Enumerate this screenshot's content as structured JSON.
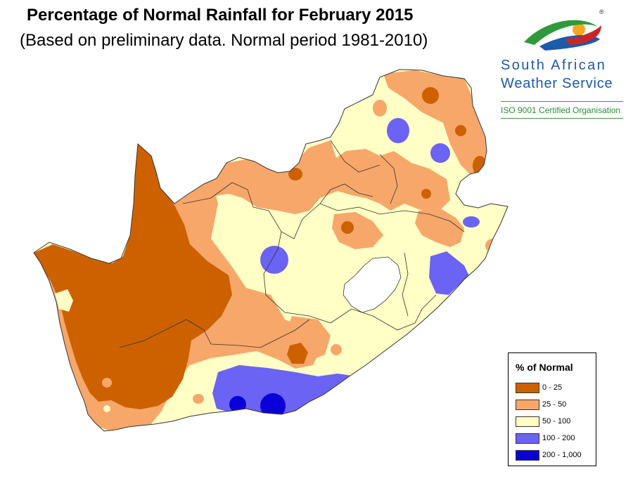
{
  "title": "Percentage of Normal Rainfall for February 2015",
  "subtitle": "(Based on preliminary data. Normal period 1981-2010)",
  "logo": {
    "name_line1": "South African",
    "name_line2": "Weather Service",
    "certification": "ISO 9001 Certified Organisation",
    "registered_mark": "®"
  },
  "legend": {
    "title": "% of Normal",
    "classes": [
      {
        "label": "0 - 25",
        "color": "#cd6100"
      },
      {
        "label": "25 - 50",
        "color": "#f7a76a"
      },
      {
        "label": "50 - 100",
        "color": "#ffffc6"
      },
      {
        "label": "100 - 200",
        "color": "#6b63f4"
      },
      {
        "label": "200 - 1,000",
        "color": "#0a00d8"
      }
    ]
  },
  "colors": {
    "very_dry": "#cd6100",
    "dry": "#f7a76a",
    "near_normal": "#ffffc6",
    "wet": "#6b63f4",
    "very_wet": "#0a00d8",
    "border": "#333333"
  }
}
